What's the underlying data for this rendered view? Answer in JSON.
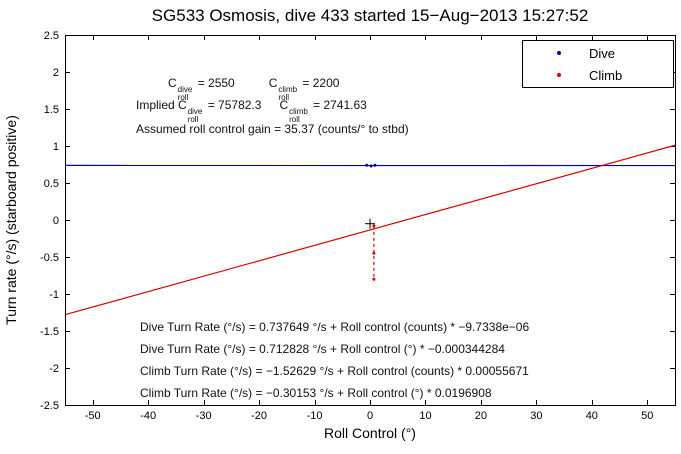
{
  "chart_data": {
    "type": "line",
    "title": "SG533 Osmosis, dive 433 started 15−Aug−2013 15:27:52",
    "xlabel": "Roll Control (°)",
    "ylabel": "Turn rate (°/s) (starboard positive)",
    "xlim": [
      -55,
      55
    ],
    "ylim": [
      -2.5,
      2.5
    ],
    "xticks": [
      -50,
      -40,
      -30,
      -20,
      -10,
      0,
      10,
      20,
      30,
      40,
      50
    ],
    "yticks": [
      -2.5,
      -2,
      -1.5,
      -1,
      -0.5,
      0,
      0.5,
      1,
      1.5,
      2,
      2.5
    ],
    "grid": false,
    "background": "#ffffff",
    "axis_color": "#000000",
    "legend": {
      "position": "top-right",
      "entries": [
        {
          "label": "Dive",
          "color": "#0000b4",
          "marker": "dot"
        },
        {
          "label": "Climb",
          "color": "#dc0000",
          "marker": "dot"
        }
      ]
    },
    "series": [
      {
        "name": "dive-fit-line",
        "color": "#0000b4",
        "style": "solid",
        "points": [
          [
            -55,
            0.7377
          ],
          [
            55,
            0.7356
          ]
        ]
      },
      {
        "name": "climb-fit-line",
        "color": "#dc0000",
        "style": "solid",
        "points": [
          [
            -55,
            -1.28
          ],
          [
            55,
            1.01
          ]
        ]
      },
      {
        "name": "climb-data-segment",
        "color": "#dc0000",
        "style": "dashed",
        "points": [
          [
            0.7,
            -0.08
          ],
          [
            0.7,
            -0.8
          ]
        ]
      }
    ],
    "scatter": [
      {
        "name": "dive-points",
        "color": "#0000b4",
        "points": [
          [
            -0.6,
            0.74
          ],
          [
            0.2,
            0.73
          ],
          [
            0.9,
            0.74
          ]
        ]
      },
      {
        "name": "climb-points",
        "color": "#dc0000",
        "points": [
          [
            0.7,
            -0.08
          ],
          [
            0.7,
            -0.45
          ],
          [
            0.7,
            -0.8
          ]
        ]
      }
    ],
    "markers": [
      {
        "x": 0,
        "y": -0.05,
        "symbol": "+",
        "color": "#000000"
      }
    ]
  },
  "annotations": {
    "coeff_lines": [
      {
        "parts": [
          {
            "text": "C",
            "sup": "dive",
            "sub": "roll"
          },
          {
            "text": " = 2550"
          },
          {
            "gap": 34
          },
          {
            "text": "C",
            "sup": "climb",
            "sub": "roll"
          },
          {
            "text": " = 2200"
          }
        ]
      },
      {
        "parts": [
          {
            "text": "Implied C",
            "sup": "dive",
            "sub": "roll"
          },
          {
            "text": " = 75782.3"
          },
          {
            "gap": 18
          },
          {
            "text": "C",
            "sup": "climb",
            "sub": "roll"
          },
          {
            "text": " = 2741.63"
          }
        ]
      },
      {
        "parts": [
          {
            "text": "Assumed roll control gain = 35.37 (counts/° to stbd)"
          }
        ]
      }
    ],
    "fit_lines": [
      "Dive Turn Rate (°/s) = 0.737649 °/s + Roll control (counts) * −9.7338e−06",
      "Dive Turn Rate (°/s) = 0.712828 °/s + Roll control (°) * −0.000344284",
      "Climb Turn Rate (°/s) = −1.52629 °/s + Roll control (counts) * 0.00055671",
      "Climb Turn Rate (°/s) = −0.30153 °/s + Roll control (°) * 0.0196908"
    ]
  }
}
